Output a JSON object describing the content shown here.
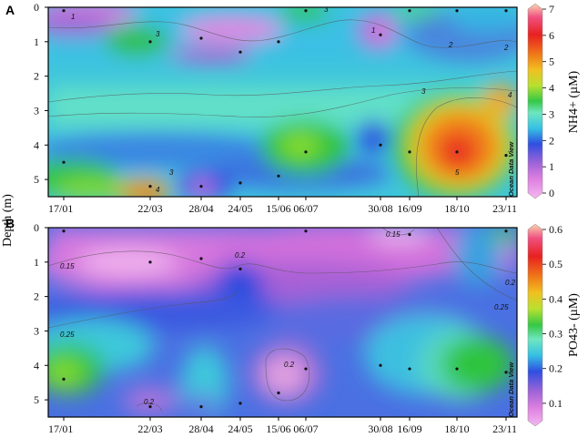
{
  "figure": {
    "y_axis_label": "Depth (m)",
    "watermark": "Ocean Data View"
  },
  "chart_data": [
    {
      "panel": "A",
      "type": "heatmap",
      "colorbar_label": "NH4+ (µM)",
      "colorbar_range": [
        0,
        7
      ],
      "colorbar_ticks": [
        "0",
        "1",
        "2",
        "3",
        "4",
        "5",
        "6",
        "7"
      ],
      "x_ticks": [
        "17/01",
        "22/03",
        "28/04",
        "24/05",
        "15/06",
        "06/07",
        "30/08",
        "16/09",
        "18/10",
        "23/11"
      ],
      "y_ticks": [
        "0",
        "1",
        "2",
        "3",
        "4",
        "5"
      ],
      "ylim": [
        0,
        5.5
      ],
      "contour_labels": [
        "1",
        "2",
        "3",
        "4",
        "5"
      ],
      "samples": [
        {
          "date": "17/01",
          "depth": 0.1
        },
        {
          "date": "17/01",
          "depth": 4.5
        },
        {
          "date": "22/03",
          "depth": 1.0
        },
        {
          "date": "22/03",
          "depth": 5.2
        },
        {
          "date": "28/04",
          "depth": 0.9
        },
        {
          "date": "28/04",
          "depth": 5.2
        },
        {
          "date": "24/05",
          "depth": 1.3
        },
        {
          "date": "24/05",
          "depth": 5.1
        },
        {
          "date": "15/06",
          "depth": 1.0
        },
        {
          "date": "15/06",
          "depth": 4.9
        },
        {
          "date": "06/07",
          "depth": 0.1
        },
        {
          "date": "06/07",
          "depth": 4.2
        },
        {
          "date": "30/08",
          "depth": 0.8
        },
        {
          "date": "30/08",
          "depth": 4.0
        },
        {
          "date": "16/09",
          "depth": 0.1
        },
        {
          "date": "16/09",
          "depth": 4.2
        },
        {
          "date": "18/10",
          "depth": 0.1
        },
        {
          "date": "18/10",
          "depth": 4.2
        },
        {
          "date": "23/11",
          "depth": 0.1
        },
        {
          "date": "23/11",
          "depth": 4.3
        }
      ],
      "hotspots": [
        {
          "date": "18/10",
          "depth": 4.3,
          "value": 6.0
        },
        {
          "date": "22/03",
          "depth": 5.4,
          "value": 4.6
        },
        {
          "date": "22/03",
          "depth": 1.2,
          "value": 3.2
        },
        {
          "date": "06/07",
          "depth": 4.0,
          "value": 3.0
        },
        {
          "date": "28/04",
          "depth": 0.7,
          "value": 0.5
        },
        {
          "date": "30/08",
          "depth": 0.8,
          "value": 0.6
        },
        {
          "date": "17/01",
          "depth": 0.3,
          "value": 1.0
        },
        {
          "date": "28/04",
          "depth": 5.2,
          "value": 2.0
        }
      ]
    },
    {
      "panel": "B",
      "type": "heatmap",
      "colorbar_label": "PO43- (µM)",
      "colorbar_range": [
        0.05,
        0.6
      ],
      "colorbar_ticks": [
        "0.1",
        "0.2",
        "0.3",
        "0.4",
        "0.5",
        "0.6"
      ],
      "x_ticks": [
        "17/01",
        "22/03",
        "28/04",
        "24/05",
        "15/06",
        "06/07",
        "30/08",
        "16/09",
        "18/10",
        "23/11"
      ],
      "y_ticks": [
        "0",
        "1",
        "2",
        "3",
        "4",
        "5"
      ],
      "ylim": [
        0,
        5.5
      ],
      "contour_labels": [
        "0.15",
        "0.2",
        "0.2",
        "0.25",
        "0.25",
        "0.2",
        "0.15",
        "0.2"
      ],
      "samples": [
        {
          "date": "17/01",
          "depth": 0.1
        },
        {
          "date": "17/01",
          "depth": 4.4
        },
        {
          "date": "22/03",
          "depth": 1.0
        },
        {
          "date": "22/03",
          "depth": 5.2
        },
        {
          "date": "28/04",
          "depth": 0.9
        },
        {
          "date": "28/04",
          "depth": 5.2
        },
        {
          "date": "24/05",
          "depth": 1.2
        },
        {
          "date": "24/05",
          "depth": 5.1
        },
        {
          "date": "15/06",
          "depth": 4.8
        },
        {
          "date": "06/07",
          "depth": 0.1
        },
        {
          "date": "06/07",
          "depth": 4.1
        },
        {
          "date": "30/08",
          "depth": 4.0
        },
        {
          "date": "16/09",
          "depth": 0.2
        },
        {
          "date": "16/09",
          "depth": 4.1
        },
        {
          "date": "18/10",
          "depth": 4.1
        },
        {
          "date": "23/11",
          "depth": 0.1
        },
        {
          "date": "23/11",
          "depth": 4.2
        }
      ],
      "hotspots": [
        {
          "date": "17/01",
          "depth": 4.0,
          "value": 0.34
        },
        {
          "date": "23/11",
          "depth": 4.0,
          "value": 0.33
        },
        {
          "date": "22/03",
          "depth": 3.3,
          "value": 0.28
        },
        {
          "date": "24/05",
          "depth": 2.0,
          "value": 0.22
        },
        {
          "date": "22/03",
          "depth": 1.0,
          "value": 0.13
        },
        {
          "date": "16/09",
          "depth": 0.2,
          "value": 0.13
        },
        {
          "date": "15/06",
          "depth": 4.5,
          "value": 0.16
        }
      ]
    }
  ]
}
